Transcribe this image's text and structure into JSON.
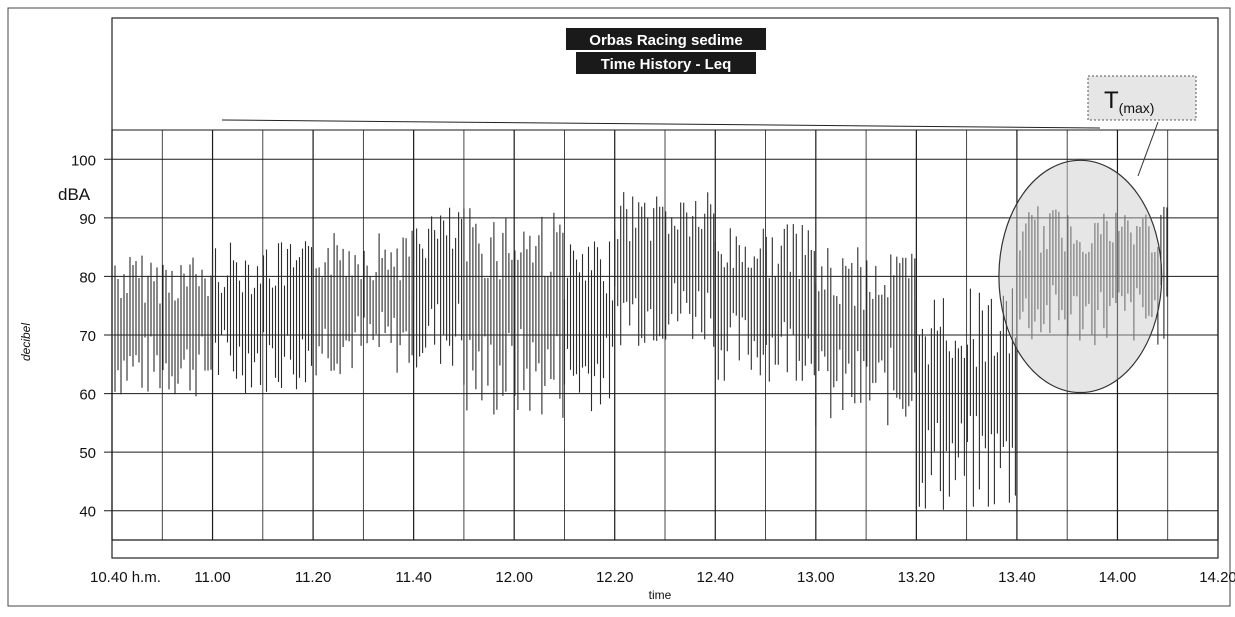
{
  "chart_data": {
    "type": "line",
    "title": "Orbas Racing sedime",
    "subtitle": "Time History - Leq",
    "xlabel": "time",
    "ylabel": "decibel",
    "y_unit": "dBA",
    "x_start_label": "10.40 h.m.",
    "x_ticks": [
      "11.00",
      "11.20",
      "11.40",
      "12.00",
      "12.20",
      "12.40",
      "13.00",
      "13.20",
      "13.40",
      "14.00",
      "14.20"
    ],
    "y_ticks": [
      40,
      50,
      60,
      70,
      80,
      90,
      100
    ],
    "ylim": [
      35,
      105
    ],
    "grid": true,
    "annotation": {
      "text": "T",
      "sub": "(max)",
      "from_time": "13.40",
      "to_time": "14.10",
      "y_range": [
        67,
        93
      ]
    },
    "series": [
      {
        "color": "#2b2b2b",
        "segments": [
          {
            "from": "10.40",
            "to": "11.00",
            "low": 59,
            "high": 84
          },
          {
            "from": "11.00",
            "to": "11.20",
            "low": 60,
            "high": 86
          },
          {
            "from": "11.20",
            "to": "11.40",
            "low": 63,
            "high": 88
          },
          {
            "from": "11.40",
            "to": "11.50",
            "low": 64,
            "high": 92
          },
          {
            "from": "11.50",
            "to": "12.10",
            "low": 55,
            "high": 92
          },
          {
            "from": "12.10",
            "to": "12.20",
            "low": 57,
            "high": 86
          },
          {
            "from": "12.20",
            "to": "12.40",
            "low": 68,
            "high": 95
          },
          {
            "from": "12.40",
            "to": "13.00",
            "low": 62,
            "high": 89
          },
          {
            "from": "13.00",
            "to": "13.20",
            "low": 54,
            "high": 85
          },
          {
            "from": "13.20",
            "to": "13.40",
            "low": 39,
            "high": 78
          },
          {
            "from": "13.40",
            "to": "14.10",
            "low": 68,
            "high": 92
          }
        ]
      }
    ]
  },
  "colors": {
    "grid": "#1a1a1a",
    "trace": "#2b2b2b",
    "ellipse_fill": "#c8c8c8",
    "title_bg": "#1a1a1a"
  }
}
